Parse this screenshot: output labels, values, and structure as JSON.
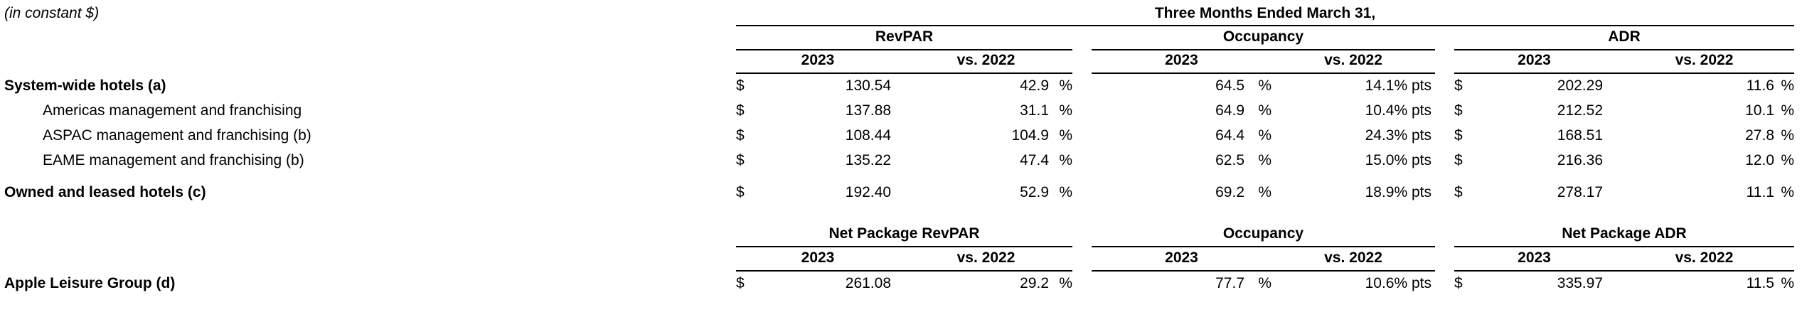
{
  "colors": {
    "text": "#000000",
    "background": "#ffffff",
    "rule": "#000000"
  },
  "note": "(in constant $)",
  "table": {
    "period_header": "Three Months Ended March 31,",
    "year_cols": {
      "y2023": "2023",
      "vs": "vs. 2022"
    },
    "section1": {
      "groups": {
        "g1": "RevPAR",
        "g2": "Occupancy",
        "g3": "ADR"
      },
      "rows": [
        {
          "label": "System-wide hotels (a)",
          "revpar_d": "$",
          "revpar": "130.54",
          "revpar_vs": "42.9",
          "revpar_vs_sfx": "%",
          "occ": "64.5",
          "occ_sfx": "%",
          "occ_vs": "14.1% pts",
          "adr_d": "$",
          "adr": "202.29",
          "adr_vs": "11.6",
          "adr_vs_sfx": "%"
        },
        {
          "label": "Americas management and franchising",
          "revpar_d": "$",
          "revpar": "137.88",
          "revpar_vs": "31.1",
          "revpar_vs_sfx": "%",
          "occ": "64.9",
          "occ_sfx": "%",
          "occ_vs": "10.4% pts",
          "adr_d": "$",
          "adr": "212.52",
          "adr_vs": "10.1",
          "adr_vs_sfx": "%"
        },
        {
          "label": "ASPAC management and franchising (b)",
          "revpar_d": "$",
          "revpar": "108.44",
          "revpar_vs": "104.9",
          "revpar_vs_sfx": "%",
          "occ": "64.4",
          "occ_sfx": "%",
          "occ_vs": "24.3% pts",
          "adr_d": "$",
          "adr": "168.51",
          "adr_vs": "27.8",
          "adr_vs_sfx": "%"
        },
        {
          "label": "EAME management and franchising (b)",
          "revpar_d": "$",
          "revpar": "135.22",
          "revpar_vs": "47.4",
          "revpar_vs_sfx": "%",
          "occ": "62.5",
          "occ_sfx": "%",
          "occ_vs": "15.0% pts",
          "adr_d": "$",
          "adr": "216.36",
          "adr_vs": "12.0",
          "adr_vs_sfx": "%"
        },
        {
          "label": "Owned and leased hotels (c)",
          "revpar_d": "$",
          "revpar": "192.40",
          "revpar_vs": "52.9",
          "revpar_vs_sfx": "%",
          "occ": "69.2",
          "occ_sfx": "%",
          "occ_vs": "18.9% pts",
          "adr_d": "$",
          "adr": "278.17",
          "adr_vs": "11.1",
          "adr_vs_sfx": "%"
        }
      ]
    },
    "section2": {
      "groups": {
        "g1": "Net Package RevPAR",
        "g2": "Occupancy",
        "g3": "Net Package ADR"
      },
      "rows": [
        {
          "label": "Apple Leisure Group (d)",
          "revpar_d": "$",
          "revpar": "261.08",
          "revpar_vs": "29.2",
          "revpar_vs_sfx": "%",
          "occ": "77.7",
          "occ_sfx": "%",
          "occ_vs": "10.6% pts",
          "adr_d": "$",
          "adr": "335.97",
          "adr_vs": "11.5",
          "adr_vs_sfx": "%"
        }
      ]
    }
  }
}
